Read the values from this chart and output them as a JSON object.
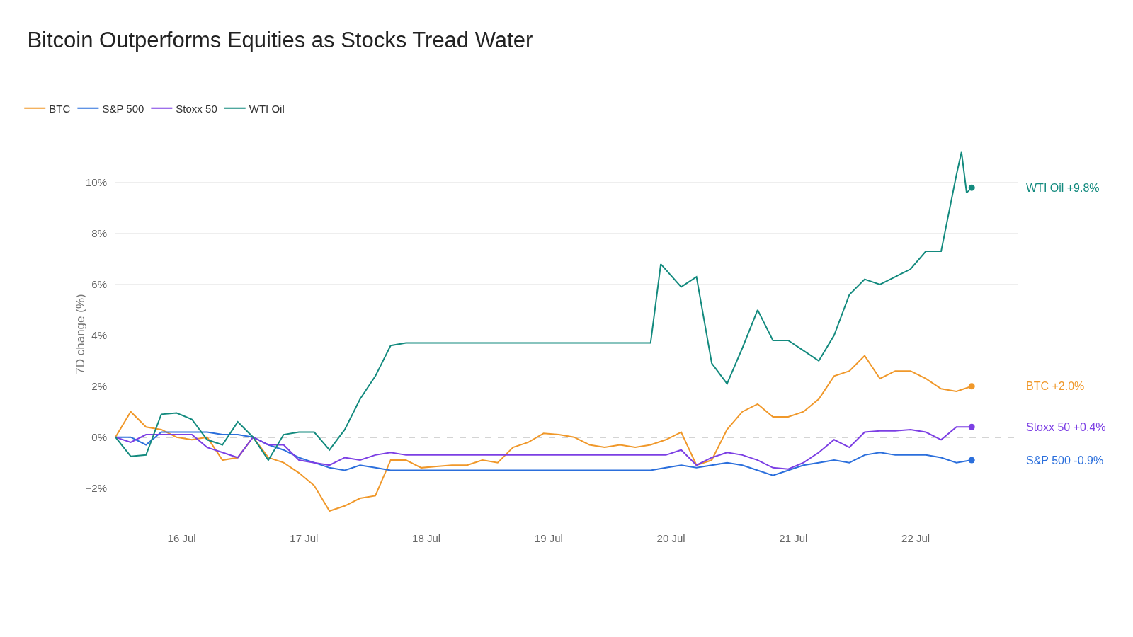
{
  "chart_data": {
    "type": "line",
    "title": "Bitcoin Outperforms Equities as Stocks Tread Water",
    "ylabel": "7D change (%)",
    "x": [
      "--07-15T11:00",
      "--07-15T14:00",
      "--07-15T17:00",
      "--07-15T20:00",
      "--07-15T23:00",
      "--07-16T02:00",
      "--07-16T05:00",
      "--07-16T08:00",
      "--07-16T11:00",
      "--07-16T14:00",
      "--07-16T17:00",
      "--07-16T20:00",
      "--07-16T23:00",
      "--07-17T02:00",
      "--07-17T05:00",
      "--07-17T08:00",
      "--07-17T11:00",
      "--07-17T14:00",
      "--07-17T17:00",
      "--07-17T20:00",
      "--07-17T23:00",
      "--07-18T02:00",
      "--07-18T05:00",
      "--07-18T08:00",
      "--07-18T11:00",
      "--07-18T14:00",
      "--07-18T17:00",
      "--07-18T20:00",
      "--07-18T23:00",
      "--07-19T02:00",
      "--07-19T05:00",
      "--07-19T08:00",
      "--07-19T11:00",
      "--07-19T14:00",
      "--07-19T17:00",
      "--07-19T20:00",
      "--07-19T23:00",
      "--07-20T02:00",
      "--07-20T05:00",
      "--07-20T08:00",
      "--07-20T11:00",
      "--07-20T14:00",
      "--07-20T17:00",
      "--07-20T20:00",
      "--07-20T23:00",
      "--07-21T02:00",
      "--07-21T05:00",
      "--07-21T08:00",
      "--07-21T11:00",
      "--07-21T14:00",
      "--07-21T17:00",
      "--07-21T20:00",
      "--07-21T23:00",
      "--07-22T02:00",
      "--07-22T05:00",
      "--07-22T08:00",
      "--07-22T11:00"
    ],
    "series": [
      {
        "name": "BTC",
        "color": "#f0982a",
        "values": [
          0,
          1.0,
          0.4,
          0.3,
          0.0,
          -0.1,
          0.0,
          -0.9,
          -0.8,
          0.0,
          -0.8,
          -1.0,
          -1.4,
          -1.9,
          -2.9,
          -2.7,
          -2.4,
          -2.3,
          -0.9,
          -0.9,
          -1.2,
          -1.15,
          -1.1,
          -1.1,
          -0.9,
          -1.0,
          -0.4,
          -0.2,
          0.15,
          0.1,
          0.0,
          -0.3,
          -0.4,
          -0.3,
          -0.4,
          -0.3,
          -0.1,
          0.2,
          -1.1,
          -0.9,
          0.3,
          1.0,
          1.3,
          0.8,
          0.8,
          1.0,
          1.5,
          2.4,
          2.6,
          3.2,
          2.3,
          2.6,
          2.6,
          2.3,
          1.9,
          1.8,
          2.0
        ]
      },
      {
        "name": "S&P 500",
        "color": "#2b6fdc",
        "values": [
          0,
          0.0,
          -0.3,
          0.2,
          0.2,
          0.2,
          0.2,
          0.1,
          0.1,
          0.0,
          -0.3,
          -0.5,
          -0.8,
          -1.0,
          -1.2,
          -1.3,
          -1.1,
          -1.2,
          -1.3,
          -1.3,
          -1.3,
          -1.3,
          -1.3,
          -1.3,
          -1.3,
          -1.3,
          -1.3,
          -1.3,
          -1.3,
          -1.3,
          -1.3,
          -1.3,
          -1.3,
          -1.3,
          -1.3,
          -1.3,
          -1.2,
          -1.1,
          -1.2,
          -1.1,
          -1.0,
          -1.1,
          -1.3,
          -1.5,
          -1.3,
          -1.1,
          -1.0,
          -0.9,
          -1.0,
          -0.7,
          -0.6,
          -0.7,
          -0.7,
          -0.7,
          -0.8,
          -1.0,
          -0.9
        ]
      },
      {
        "name": "Stoxx 50",
        "color": "#7c3fe4",
        "values": [
          0,
          -0.2,
          0.1,
          0.1,
          0.1,
          0.1,
          -0.4,
          -0.6,
          -0.8,
          0.0,
          -0.3,
          -0.3,
          -0.9,
          -1.0,
          -1.1,
          -0.8,
          -0.9,
          -0.7,
          -0.6,
          -0.7,
          -0.7,
          -0.7,
          -0.7,
          -0.7,
          -0.7,
          -0.7,
          -0.7,
          -0.7,
          -0.7,
          -0.7,
          -0.7,
          -0.7,
          -0.7,
          -0.7,
          -0.7,
          -0.7,
          -0.7,
          -0.5,
          -1.1,
          -0.8,
          -0.6,
          -0.7,
          -0.9,
          -1.2,
          -1.25,
          -1.0,
          -0.6,
          -0.1,
          -0.4,
          0.2,
          0.25,
          0.25,
          0.3,
          0.2,
          -0.1,
          0.4,
          0.4
        ]
      },
      {
        "name": "WTI Oil",
        "color": "#138a7e",
        "x": [
          "--07-15T11:00",
          "--07-15T14:00",
          "--07-15T17:00",
          "--07-15T20:00",
          "--07-15T23:00",
          "--07-16T02:00",
          "--07-16T05:00",
          "--07-16T08:00",
          "--07-16T11:00",
          "--07-16T14:00",
          "--07-16T17:00",
          "--07-16T20:00",
          "--07-16T23:00",
          "--07-17T02:00",
          "--07-17T05:00",
          "--07-17T08:00",
          "--07-17T11:00",
          "--07-17T14:00",
          "--07-17T17:00",
          "--07-17T20:00",
          "--07-19T20:00",
          "--07-19T22:00",
          "--07-20T02:00",
          "--07-20T05:00",
          "--07-20T08:00",
          "--07-20T11:00",
          "--07-20T14:00",
          "--07-20T17:00",
          "--07-20T20:00",
          "--07-20T23:00",
          "--07-21T02:00",
          "--07-21T05:00",
          "--07-21T08:00",
          "--07-21T11:00",
          "--07-21T14:00",
          "--07-21T17:00",
          "--07-21T20:00",
          "--07-21T23:00",
          "--07-22T02:00",
          "--07-22T05:00",
          "--07-22T08:00",
          "--07-22T09:00",
          "--07-22T10:00",
          "--07-22T11:00"
        ],
        "values": [
          0,
          -0.75,
          -0.7,
          0.9,
          0.95,
          0.7,
          -0.1,
          -0.3,
          0.6,
          0.0,
          -0.9,
          0.1,
          0.2,
          0.2,
          -0.5,
          0.3,
          1.5,
          2.4,
          3.6,
          3.7,
          3.7,
          6.8,
          5.9,
          6.3,
          2.9,
          2.1,
          3.5,
          5.0,
          3.8,
          3.8,
          3.4,
          3.0,
          4.0,
          5.6,
          6.2,
          6.0,
          6.3,
          6.6,
          7.3,
          7.3,
          10.3,
          11.2,
          9.6,
          9.8
        ]
      }
    ],
    "xlim": [
      "--07-15T11:00",
      "--07-22T20:00"
    ],
    "xticks": [
      {
        "value": "--07-16",
        "label": "16 Jul"
      },
      {
        "value": "--07-17",
        "label": "17 Jul"
      },
      {
        "value": "--07-18",
        "label": "18 Jul"
      },
      {
        "value": "--07-19",
        "label": "19 Jul"
      },
      {
        "value": "--07-20",
        "label": "20 Jul"
      },
      {
        "value": "--07-21",
        "label": "21 Jul"
      },
      {
        "value": "--07-22",
        "label": "22 Jul"
      }
    ],
    "ylim": [
      -3.4,
      11.5
    ],
    "yticks": [
      {
        "value": -2,
        "label": "−2%"
      },
      {
        "value": 0,
        "label": "0%"
      },
      {
        "value": 2,
        "label": "2%"
      },
      {
        "value": 4,
        "label": "4%"
      },
      {
        "value": 6,
        "label": "6%"
      },
      {
        "value": 8,
        "label": "8%"
      },
      {
        "value": 10,
        "label": "10%"
      }
    ],
    "ref_lines": [
      {
        "axis": "y",
        "value": 0,
        "color": "#aaaaaa",
        "line_style": "dashed"
      }
    ],
    "annotations": [
      "BTC +2.0%",
      "S&P 500 -0.9%",
      "Stoxx 50 +0.4%",
      "WTI Oil +9.8%"
    ],
    "grid": "y",
    "legend": "top left",
    "line_style": "solid",
    "marker": "none"
  }
}
